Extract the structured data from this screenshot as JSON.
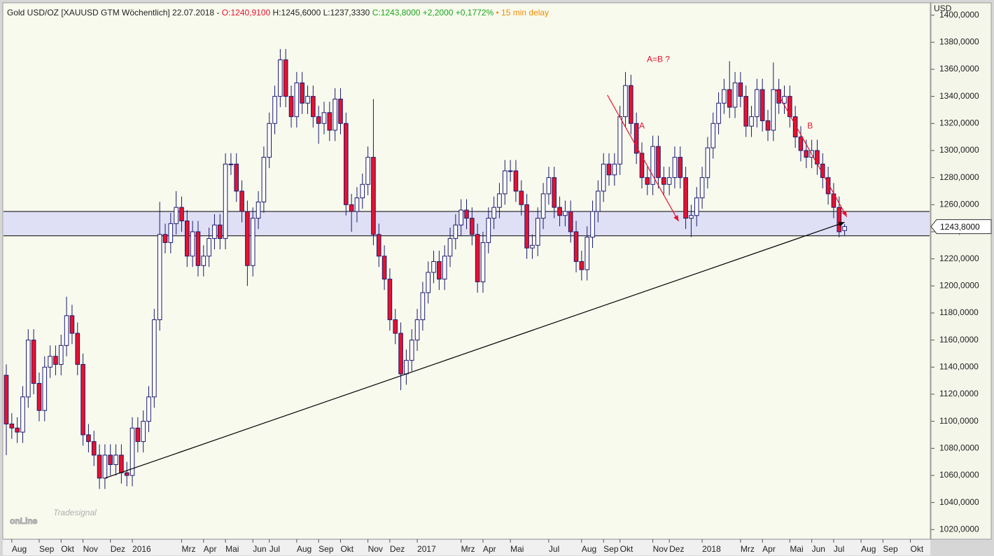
{
  "chart_data": {
    "type": "candlestick",
    "header": {
      "symbol": "Gold USD/OZ [XAUUSD GTM Wöchentlich] 22.07.2018 -",
      "open": "O:1240,9100",
      "high_low": "H:1245,6000 L:1237,3330",
      "change": "C:1243,8000 +2,2000 +0,1772%",
      "delay": "• 15 min delay"
    },
    "y_unit": "USD",
    "watermark": "onLine",
    "watermark_small": "Tradesignal",
    "up_color": "#ffffff",
    "down_color": "#e8112d",
    "outline_color": "#1a1a6e",
    "ylim": [
      1012.9,
      1408.6
    ],
    "yticks": [
      {
        "value": 1020,
        "label": "1020,0000"
      },
      {
        "value": 1040,
        "label": "1040,0000"
      },
      {
        "value": 1060,
        "label": "1060,0000"
      },
      {
        "value": 1080,
        "label": "1080,0000"
      },
      {
        "value": 1100,
        "label": "1100,0000"
      },
      {
        "value": 1120,
        "label": "1120,0000"
      },
      {
        "value": 1140,
        "label": "1140,0000"
      },
      {
        "value": 1160,
        "label": "1160,0000"
      },
      {
        "value": 1180,
        "label": "1180,0000"
      },
      {
        "value": 1200,
        "label": "1200,0000"
      },
      {
        "value": 1220,
        "label": "1220,0000"
      },
      {
        "value": 1240,
        "label": "1240,0000"
      },
      {
        "value": 1260,
        "label": "1260,0000"
      },
      {
        "value": 1280,
        "label": "1280,0000"
      },
      {
        "value": 1300,
        "label": "1300,0000"
      },
      {
        "value": 1320,
        "label": "1320,0000"
      },
      {
        "value": 1340,
        "label": "1340,0000"
      },
      {
        "value": 1360,
        "label": "1360,0000"
      },
      {
        "value": 1380,
        "label": "1380,0000"
      },
      {
        "value": 1400,
        "label": "1400,0000"
      }
    ],
    "last_price": {
      "value": 1243.8,
      "label": "1243,8000"
    },
    "band": {
      "low": 1237,
      "high": 1255,
      "color": "#dfe0f5"
    },
    "trendlines": [
      {
        "from": {
          "x": 18,
          "y": 1058
        },
        "to": {
          "x": 153,
          "y": 1247
        },
        "color": "#000000"
      },
      {
        "from": {
          "x": 109.7,
          "y": 1341
        },
        "to": {
          "x": 122.7,
          "y": 1247.7
        },
        "color": "#e8112d"
      },
      {
        "from": {
          "x": 140.4,
          "y": 1345
        },
        "to": {
          "x": 153.4,
          "y": 1251
        },
        "color": "#e8112d"
      }
    ],
    "annotations": [
      {
        "text": "A=B ?",
        "x": 119,
        "y": 1367
      },
      {
        "text": "A",
        "x": 116,
        "y": 1318
      },
      {
        "text": "B",
        "x": 146.7,
        "y": 1318
      }
    ],
    "categories": [
      null,
      "Aug",
      null,
      null,
      null,
      null,
      "Sep",
      null,
      null,
      null,
      "Okt",
      null,
      null,
      null,
      "Nov",
      null,
      null,
      null,
      null,
      "Dez",
      null,
      null,
      null,
      "2016",
      null,
      null,
      null,
      null,
      null,
      null,
      null,
      null,
      "Mrz",
      null,
      null,
      null,
      "Apr",
      null,
      null,
      null,
      "Mai",
      null,
      null,
      null,
      null,
      "Jun",
      null,
      null,
      "Jul",
      null,
      null,
      null,
      null,
      "Aug",
      null,
      null,
      null,
      "Sep",
      null,
      null,
      null,
      "Okt",
      null,
      null,
      null,
      null,
      "Nov",
      null,
      null,
      null,
      "Dez",
      null,
      null,
      null,
      null,
      "2017",
      null,
      null,
      null,
      null,
      null,
      null,
      null,
      "Mrz",
      null,
      null,
      null,
      "Apr",
      null,
      null,
      null,
      null,
      "Mai",
      null,
      null,
      null,
      null,
      null,
      null,
      "Jul",
      null,
      null,
      null,
      null,
      null,
      "Aug",
      null,
      null,
      null,
      "Sep",
      null,
      null,
      "Okt",
      null,
      null,
      null,
      null,
      null,
      "Nov",
      null,
      null,
      "Dez",
      null,
      null,
      null,
      null,
      null,
      "2018",
      null,
      null,
      null,
      null,
      null,
      null,
      "Mrz",
      null,
      null,
      null,
      "Apr",
      null,
      null,
      null,
      null,
      "Mai",
      null,
      null,
      null,
      "Jun",
      null,
      null,
      null,
      "Jul",
      null,
      null,
      null,
      null,
      "Aug",
      null,
      null,
      null,
      "Sep",
      null,
      null,
      null,
      null,
      "Okt",
      null,
      null,
      null
    ],
    "open": [
      1134,
      1098,
      1095,
      1092,
      1118,
      1160,
      1128,
      1108,
      1140,
      1148,
      1142,
      1156,
      1178,
      1165,
      1142,
      1090,
      1085,
      1075,
      1058,
      1075,
      1068,
      1075,
      1062,
      1060,
      1095,
      1085,
      1100,
      1118,
      1175,
      1238,
      1232,
      1246,
      1258,
      1248,
      1222,
      1240,
      1215,
      1222,
      1235,
      1245,
      1235,
      1290,
      1290,
      1270,
      1255,
      1215,
      1250,
      1262,
      1295,
      1320,
      1340,
      1367,
      1340,
      1325,
      1350,
      1335,
      1340,
      1325,
      1320,
      1328,
      1315,
      1338,
      1320,
      1260,
      1255,
      1265,
      1275,
      1295,
      1238,
      1222,
      1205,
      1175,
      1165,
      1135,
      1145,
      1160,
      1175,
      1195,
      1210,
      1218,
      1205,
      1222,
      1235,
      1245,
      1256,
      1250,
      1238,
      1203,
      1232,
      1250,
      1258,
      1268,
      1285,
      1285,
      1270,
      1260,
      1228,
      1230,
      1250,
      1268,
      1280,
      1258,
      1252,
      1255,
      1240,
      1218,
      1212,
      1236,
      1255,
      1270,
      1290,
      1282,
      1290,
      1325,
      1348,
      1320,
      1298,
      1280,
      1275,
      1303,
      1280,
      1275,
      1280,
      1295,
      1280,
      1250,
      1252,
      1265,
      1280,
      1302,
      1320,
      1335,
      1345,
      1332,
      1350,
      1340,
      1318,
      1325,
      1345,
      1322,
      1315,
      1345,
      1335,
      1340,
      1325,
      1310,
      1300,
      1295,
      1300,
      1290,
      1280,
      1268,
      1258,
      1240.91,
      null,
      null,
      null,
      null,
      null,
      null,
      null,
      null,
      null,
      null,
      null,
      null,
      null,
      null,
      null
    ],
    "high": [
      1142,
      1106,
      1103,
      1126,
      1168,
      1168,
      1136,
      1148,
      1156,
      1156,
      1164,
      1192,
      1186,
      1173,
      1150,
      1098,
      1093,
      1083,
      1083,
      1083,
      1083,
      1083,
      1070,
      1103,
      1103,
      1108,
      1126,
      1183,
      1262,
      1246,
      1254,
      1270,
      1266,
      1256,
      1248,
      1248,
      1230,
      1243,
      1253,
      1253,
      1298,
      1298,
      1298,
      1278,
      1263,
      1258,
      1270,
      1303,
      1328,
      1348,
      1375,
      1375,
      1348,
      1358,
      1358,
      1348,
      1348,
      1333,
      1336,
      1336,
      1346,
      1346,
      1328,
      1268,
      1273,
      1283,
      1303,
      1338,
      1246,
      1230,
      1213,
      1183,
      1173,
      1153,
      1168,
      1183,
      1203,
      1218,
      1226,
      1226,
      1230,
      1243,
      1253,
      1264,
      1264,
      1258,
      1246,
      1240,
      1258,
      1266,
      1276,
      1293,
      1293,
      1293,
      1278,
      1268,
      1238,
      1258,
      1276,
      1288,
      1288,
      1266,
      1263,
      1263,
      1248,
      1226,
      1244,
      1263,
      1278,
      1298,
      1298,
      1298,
      1333,
      1358,
      1356,
      1328,
      1306,
      1288,
      1311,
      1311,
      1288,
      1288,
      1303,
      1303,
      1288,
      1260,
      1273,
      1288,
      1310,
      1328,
      1343,
      1353,
      1366,
      1358,
      1358,
      1348,
      1333,
      1353,
      1353,
      1330,
      1365,
      1353,
      1348,
      1348,
      1333,
      1318,
      1308,
      1308,
      1308,
      1298,
      1288,
      1276,
      1266,
      1245.6,
      null,
      null,
      null,
      null,
      null,
      null,
      null,
      null,
      null,
      null,
      null,
      null,
      null,
      null,
      null
    ],
    "low": [
      1075,
      1087,
      1084,
      1084,
      1110,
      1120,
      1100,
      1100,
      1132,
      1134,
      1134,
      1148,
      1157,
      1134,
      1082,
      1077,
      1067,
      1050,
      1050,
      1060,
      1060,
      1054,
      1052,
      1052,
      1077,
      1077,
      1092,
      1110,
      1167,
      1224,
      1224,
      1238,
      1240,
      1214,
      1214,
      1207,
      1207,
      1214,
      1227,
      1227,
      1227,
      1282,
      1262,
      1247,
      1200,
      1207,
      1242,
      1254,
      1287,
      1312,
      1332,
      1332,
      1317,
      1317,
      1327,
      1327,
      1317,
      1305,
      1312,
      1307,
      1307,
      1312,
      1252,
      1240,
      1247,
      1257,
      1267,
      1230,
      1214,
      1197,
      1167,
      1157,
      1123,
      1127,
      1137,
      1152,
      1167,
      1187,
      1202,
      1197,
      1197,
      1214,
      1227,
      1237,
      1242,
      1230,
      1195,
      1195,
      1224,
      1242,
      1250,
      1260,
      1277,
      1262,
      1252,
      1220,
      1220,
      1222,
      1242,
      1260,
      1250,
      1244,
      1244,
      1232,
      1210,
      1204,
      1204,
      1228,
      1247,
      1262,
      1274,
      1274,
      1282,
      1317,
      1312,
      1290,
      1272,
      1267,
      1267,
      1272,
      1267,
      1267,
      1272,
      1272,
      1242,
      1236,
      1244,
      1257,
      1272,
      1294,
      1312,
      1327,
      1324,
      1324,
      1332,
      1310,
      1310,
      1317,
      1314,
      1307,
      1307,
      1327,
      1327,
      1317,
      1302,
      1292,
      1287,
      1287,
      1282,
      1272,
      1260,
      1250,
      1236,
      1237.333,
      null,
      null,
      null,
      null,
      null,
      null,
      null,
      null,
      null,
      null,
      null,
      null,
      null,
      null,
      null
    ],
    "close": [
      1098,
      1095,
      1092,
      1118,
      1160,
      1128,
      1108,
      1140,
      1148,
      1142,
      1156,
      1178,
      1165,
      1142,
      1090,
      1085,
      1075,
      1058,
      1075,
      1068,
      1075,
      1062,
      1060,
      1095,
      1085,
      1100,
      1118,
      1175,
      1238,
      1232,
      1246,
      1258,
      1248,
      1222,
      1240,
      1215,
      1222,
      1235,
      1245,
      1235,
      1290,
      1290,
      1270,
      1255,
      1215,
      1250,
      1262,
      1295,
      1320,
      1340,
      1367,
      1340,
      1325,
      1350,
      1335,
      1340,
      1325,
      1320,
      1328,
      1315,
      1338,
      1320,
      1260,
      1255,
      1265,
      1275,
      1295,
      1238,
      1222,
      1205,
      1175,
      1165,
      1135,
      1145,
      1160,
      1175,
      1195,
      1210,
      1218,
      1205,
      1222,
      1235,
      1245,
      1256,
      1250,
      1238,
      1203,
      1232,
      1250,
      1258,
      1268,
      1285,
      1285,
      1270,
      1260,
      1228,
      1230,
      1250,
      1268,
      1280,
      1258,
      1252,
      1255,
      1240,
      1218,
      1212,
      1236,
      1255,
      1270,
      1290,
      1282,
      1290,
      1325,
      1348,
      1320,
      1298,
      1280,
      1275,
      1303,
      1280,
      1275,
      1280,
      1295,
      1280,
      1250,
      1252,
      1265,
      1280,
      1302,
      1320,
      1335,
      1345,
      1332,
      1350,
      1340,
      1318,
      1325,
      1345,
      1322,
      1315,
      1345,
      1335,
      1340,
      1325,
      1310,
      1300,
      1295,
      1300,
      1290,
      1280,
      1268,
      1258,
      1240,
      1243.8,
      null,
      null,
      null,
      null,
      null,
      null,
      null,
      null,
      null,
      null,
      null,
      null,
      null,
      null,
      null
    ]
  }
}
